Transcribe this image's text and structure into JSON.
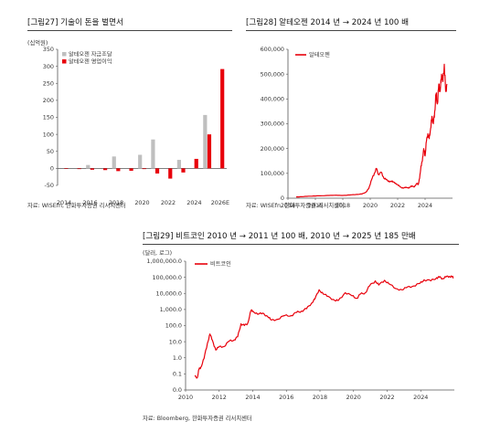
{
  "colors": {
    "gray": "#bfbfbf",
    "red": "#e8000b",
    "axis": "#555555",
    "text": "#333333"
  },
  "panel27": {
    "title": "[그림27]  기술이 돈을 벌면서",
    "unit": "(십억원)",
    "source": "자료: WISEfn, 한화투자증권 리서치센터",
    "legend": [
      "알테오젠 자금조달",
      "알테오젠 영업이익"
    ],
    "chart_data": {
      "type": "bar",
      "categories": [
        "2014",
        "2015",
        "2016",
        "2017",
        "2018",
        "2019",
        "2020",
        "2021",
        "2022",
        "2023",
        "2024",
        "2025",
        "2026E"
      ],
      "tick_labels": [
        "2014",
        "2016",
        "2018",
        "2020",
        "2022",
        "2024",
        "2026E"
      ],
      "series": [
        {
          "name": "알테오젠 자금조달",
          "values": [
            0,
            0,
            10,
            0,
            35,
            0,
            40,
            85,
            0,
            25,
            0,
            157,
            0
          ]
        },
        {
          "name": "알테오젠 영업이익",
          "values": [
            -1,
            -2,
            -4,
            -5,
            -8,
            -7,
            -2,
            -15,
            -30,
            -12,
            28,
            100,
            292
          ]
        }
      ],
      "yticks": [
        -50,
        0,
        50,
        100,
        150,
        200,
        250,
        300,
        350
      ],
      "ylim": [
        -50,
        350
      ]
    }
  },
  "panel28": {
    "title": "[그림28]  알테오젠 2014 년 → 2024 년 100 배",
    "source": "자료: WISEfn, 한화투자증권 리서치센터",
    "legend": [
      "알테오젠"
    ],
    "chart_data": {
      "type": "line",
      "series": [
        {
          "name": "알테오젠",
          "points": [
            [
              2014.6,
              5000
            ],
            [
              2015,
              6000
            ],
            [
              2015.5,
              8000
            ],
            [
              2016,
              9000
            ],
            [
              2016.5,
              10000
            ],
            [
              2017,
              11000
            ],
            [
              2017.5,
              12000
            ],
            [
              2018,
              11000
            ],
            [
              2018.5,
              13000
            ],
            [
              2019,
              15000
            ],
            [
              2019.4,
              17000
            ],
            [
              2019.7,
              25000
            ],
            [
              2019.9,
              40000
            ],
            [
              2020.1,
              75000
            ],
            [
              2020.3,
              100000
            ],
            [
              2020.45,
              120000
            ],
            [
              2020.6,
              95000
            ],
            [
              2020.8,
              105000
            ],
            [
              2021,
              80000
            ],
            [
              2021.2,
              75000
            ],
            [
              2021.4,
              65000
            ],
            [
              2021.6,
              70000
            ],
            [
              2021.8,
              60000
            ],
            [
              2022,
              55000
            ],
            [
              2022.2,
              45000
            ],
            [
              2022.4,
              40000
            ],
            [
              2022.6,
              45000
            ],
            [
              2022.8,
              40000
            ],
            [
              2023,
              50000
            ],
            [
              2023.2,
              45000
            ],
            [
              2023.4,
              60000
            ],
            [
              2023.5,
              55000
            ],
            [
              2023.6,
              80000
            ],
            [
              2023.7,
              130000
            ],
            [
              2023.8,
              150000
            ],
            [
              2023.9,
              200000
            ],
            [
              2024,
              170000
            ],
            [
              2024.1,
              230000
            ],
            [
              2024.2,
              260000
            ],
            [
              2024.3,
              240000
            ],
            [
              2024.4,
              280000
            ],
            [
              2024.5,
              330000
            ],
            [
              2024.6,
              300000
            ],
            [
              2024.7,
              350000
            ],
            [
              2024.8,
              420000
            ],
            [
              2024.9,
              380000
            ],
            [
              2025,
              460000
            ],
            [
              2025.1,
              430000
            ],
            [
              2025.2,
              500000
            ],
            [
              2025.3,
              470000
            ],
            [
              2025.4,
              540000
            ],
            [
              2025.5,
              430000
            ],
            [
              2025.6,
              460000
            ]
          ]
        }
      ],
      "xticks": [
        2014,
        2016,
        2018,
        2020,
        2022,
        2024
      ],
      "yticks": [
        0,
        100000,
        200000,
        300000,
        400000,
        500000,
        600000
      ],
      "ytick_labels": [
        "0",
        "100,000",
        "200,000",
        "300,000",
        "400,000",
        "500,000",
        "600,000"
      ],
      "xlim": [
        2014,
        2026
      ],
      "ylim": [
        0,
        600000
      ]
    }
  },
  "panel29": {
    "title": "[그림29]  비트코인 2010 년 → 2011 년 100 배, 2010 년 → 2025 년 185 만배",
    "unit": "(달러, 로그)",
    "source": "자료: Bloomberg, 한화투자증권 리서치센터",
    "legend": [
      "비트코인"
    ],
    "chart_data": {
      "type": "line",
      "yscale": "log",
      "series": [
        {
          "name": "비트코인",
          "points": [
            [
              2010.55,
              0.07
            ],
            [
              2010.7,
              0.06
            ],
            [
              2010.8,
              0.2
            ],
            [
              2010.9,
              0.25
            ],
            [
              2011.1,
              0.9
            ],
            [
              2011.3,
              8
            ],
            [
              2011.45,
              30
            ],
            [
              2011.6,
              12
            ],
            [
              2011.8,
              3
            ],
            [
              2012,
              5
            ],
            [
              2012.3,
              5
            ],
            [
              2012.6,
              11
            ],
            [
              2012.9,
              13
            ],
            [
              2013.1,
              20
            ],
            [
              2013.3,
              130
            ],
            [
              2013.5,
              100
            ],
            [
              2013.7,
              140
            ],
            [
              2013.9,
              900
            ],
            [
              2014,
              800
            ],
            [
              2014.3,
              500
            ],
            [
              2014.6,
              600
            ],
            [
              2014.9,
              350
            ],
            [
              2015.1,
              220
            ],
            [
              2015.5,
              250
            ],
            [
              2015.9,
              420
            ],
            [
              2016.3,
              420
            ],
            [
              2016.6,
              650
            ],
            [
              2016.9,
              800
            ],
            [
              2017.2,
              1100
            ],
            [
              2017.5,
              2500
            ],
            [
              2017.7,
              4500
            ],
            [
              2017.95,
              17000
            ],
            [
              2018.2,
              9000
            ],
            [
              2018.5,
              6500
            ],
            [
              2018.9,
              3500
            ],
            [
              2019.1,
              3700
            ],
            [
              2019.5,
              11000
            ],
            [
              2019.9,
              7200
            ],
            [
              2020.2,
              5000
            ],
            [
              2020.4,
              9000
            ],
            [
              2020.7,
              11000
            ],
            [
              2020.95,
              29000
            ],
            [
              2021.3,
              60000
            ],
            [
              2021.5,
              33000
            ],
            [
              2021.85,
              65000
            ],
            [
              2022.1,
              40000
            ],
            [
              2022.5,
              20000
            ],
            [
              2022.9,
              16500
            ],
            [
              2023.2,
              25000
            ],
            [
              2023.6,
              29000
            ],
            [
              2023.95,
              42000
            ],
            [
              2024.2,
              70000
            ],
            [
              2024.6,
              60000
            ],
            [
              2024.95,
              95000
            ],
            [
              2025.1,
              100000
            ],
            [
              2025.3,
              85000
            ],
            [
              2025.5,
              105000
            ],
            [
              2025.7,
              115000
            ],
            [
              2025.85,
              110000
            ],
            [
              2025.95,
              95000
            ]
          ]
        }
      ],
      "xticks": [
        2010,
        2012,
        2014,
        2016,
        2018,
        2020,
        2022,
        2024
      ],
      "yticks": [
        0.01,
        0.1,
        1,
        10,
        100,
        1000,
        10000,
        100000,
        1000000
      ],
      "ytick_labels": [
        "0.0",
        "0.1",
        "1.0",
        "10.0",
        "100.0",
        "1,000.0",
        "10,000.0",
        "100,000.0",
        "1,000,000.0"
      ],
      "xlim": [
        2010,
        2026
      ],
      "ylim": [
        0.01,
        1000000
      ]
    }
  }
}
